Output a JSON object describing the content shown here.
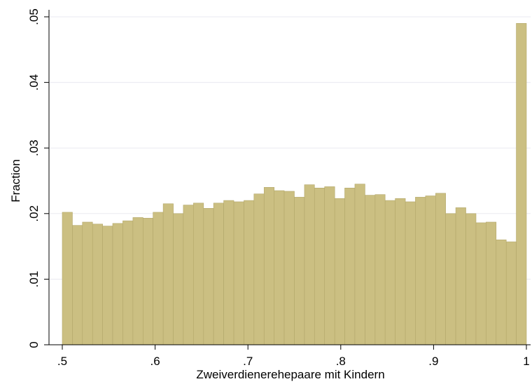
{
  "chart_data": {
    "type": "histogram",
    "xlabel": "Zweiverdienerehepaare mit Kindern",
    "ylabel": "Fraction",
    "color": "#cbbf82",
    "bins": [
      0.5,
      0.5109,
      0.5217,
      0.5326,
      0.5435,
      0.5543,
      0.5652,
      0.5761,
      0.587,
      0.5978,
      0.6087,
      0.6196,
      0.6304,
      0.6413,
      0.6522,
      0.663,
      0.6739,
      0.6848,
      0.6957,
      0.7065,
      0.7174,
      0.7283,
      0.7391,
      0.75,
      0.7609,
      0.7717,
      0.7826,
      0.7935,
      0.8043,
      0.8152,
      0.8261,
      0.837,
      0.8478,
      0.8587,
      0.8696,
      0.8804,
      0.8913,
      0.9022,
      0.913,
      0.9239,
      0.9348,
      0.9457,
      0.9565,
      0.9674,
      0.9783,
      0.9891,
      1
    ],
    "values": [
      0.0202,
      0.0182,
      0.0187,
      0.0184,
      0.0181,
      0.0185,
      0.0189,
      0.0194,
      0.0193,
      0.0202,
      0.0215,
      0.02,
      0.0213,
      0.0216,
      0.0208,
      0.0216,
      0.022,
      0.0218,
      0.022,
      0.023,
      0.024,
      0.0235,
      0.0234,
      0.0225,
      0.0244,
      0.0239,
      0.0241,
      0.0223,
      0.0239,
      0.0245,
      0.0228,
      0.0229,
      0.022,
      0.0223,
      0.0218,
      0.0225,
      0.0227,
      0.0231,
      0.02,
      0.0209,
      0.02,
      0.0186,
      0.0187,
      0.016,
      0.0157,
      0.049
    ],
    "xlim": [
      0.5,
      1
    ],
    "ylim": [
      0,
      0.05
    ],
    "xticks": [
      {
        "value": 0.5,
        "label": ".5"
      },
      {
        "value": 0.6,
        "label": ".6"
      },
      {
        "value": 0.7,
        "label": ".7"
      },
      {
        "value": 0.8,
        "label": ".8"
      },
      {
        "value": 0.9,
        "label": ".9"
      },
      1
    ],
    "yticks": [
      0,
      {
        "value": 0.01,
        "label": ".01"
      },
      {
        "value": 0.02,
        "label": ".02"
      },
      {
        "value": 0.03,
        "label": ".03"
      },
      {
        "value": 0.04,
        "label": ".04"
      },
      {
        "value": 0.05,
        "label": ".05"
      }
    ],
    "grid": true
  }
}
